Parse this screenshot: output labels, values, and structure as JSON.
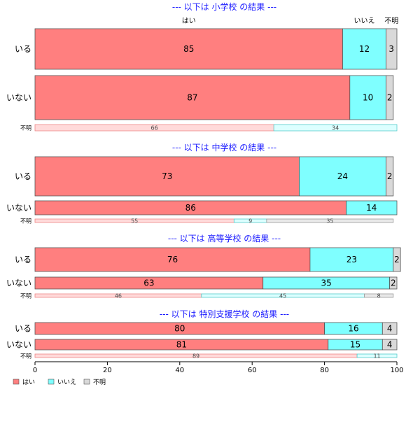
{
  "chart_data": {
    "type": "bar",
    "orientation": "horizontal",
    "stacked": "percent",
    "xlim": [
      0,
      100
    ],
    "xticks": [
      0,
      20,
      40,
      60,
      80,
      100
    ],
    "series_names": [
      "はい",
      "いいえ",
      "不明"
    ],
    "colors": {
      "yes": "#ff7f7f",
      "no": "#7fffff",
      "unknown": "#d9d9d9",
      "title": "#1a1aff"
    },
    "column_headers": [
      "はい",
      "いいえ",
      "不明"
    ],
    "legend": {
      "position": "bottom-left",
      "entries": [
        "はい",
        "いいえ",
        "不明"
      ]
    },
    "sections": [
      {
        "title": "--- 以下は 小学校 の結果 ---",
        "rows": [
          {
            "label": "いる",
            "values": [
              85,
              12,
              3
            ]
          },
          {
            "label": "いない",
            "values": [
              87,
              10,
              2
            ]
          },
          {
            "label": "不明",
            "values": [
              66,
              34,
              0
            ]
          }
        ]
      },
      {
        "title": "--- 以下は 中学校 の結果 ---",
        "rows": [
          {
            "label": "いる",
            "values": [
              73,
              24,
              2
            ]
          },
          {
            "label": "いない",
            "values": [
              86,
              14,
              0
            ]
          },
          {
            "label": "不明",
            "values": [
              55,
              9,
              35
            ]
          }
        ]
      },
      {
        "title": "--- 以下は 高等学校 の結果 ---",
        "rows": [
          {
            "label": "いる",
            "values": [
              76,
              23,
              2
            ]
          },
          {
            "label": "いない",
            "values": [
              63,
              35,
              2
            ]
          },
          {
            "label": "不明",
            "values": [
              46,
              45,
              8
            ]
          }
        ]
      },
      {
        "title": "--- 以下は 特別支援学校 の結果 ---",
        "rows": [
          {
            "label": "いる",
            "values": [
              80,
              16,
              4
            ]
          },
          {
            "label": "いない",
            "values": [
              81,
              15,
              4
            ]
          },
          {
            "label": "不明",
            "values": [
              89,
              11,
              0
            ]
          }
        ]
      }
    ]
  }
}
